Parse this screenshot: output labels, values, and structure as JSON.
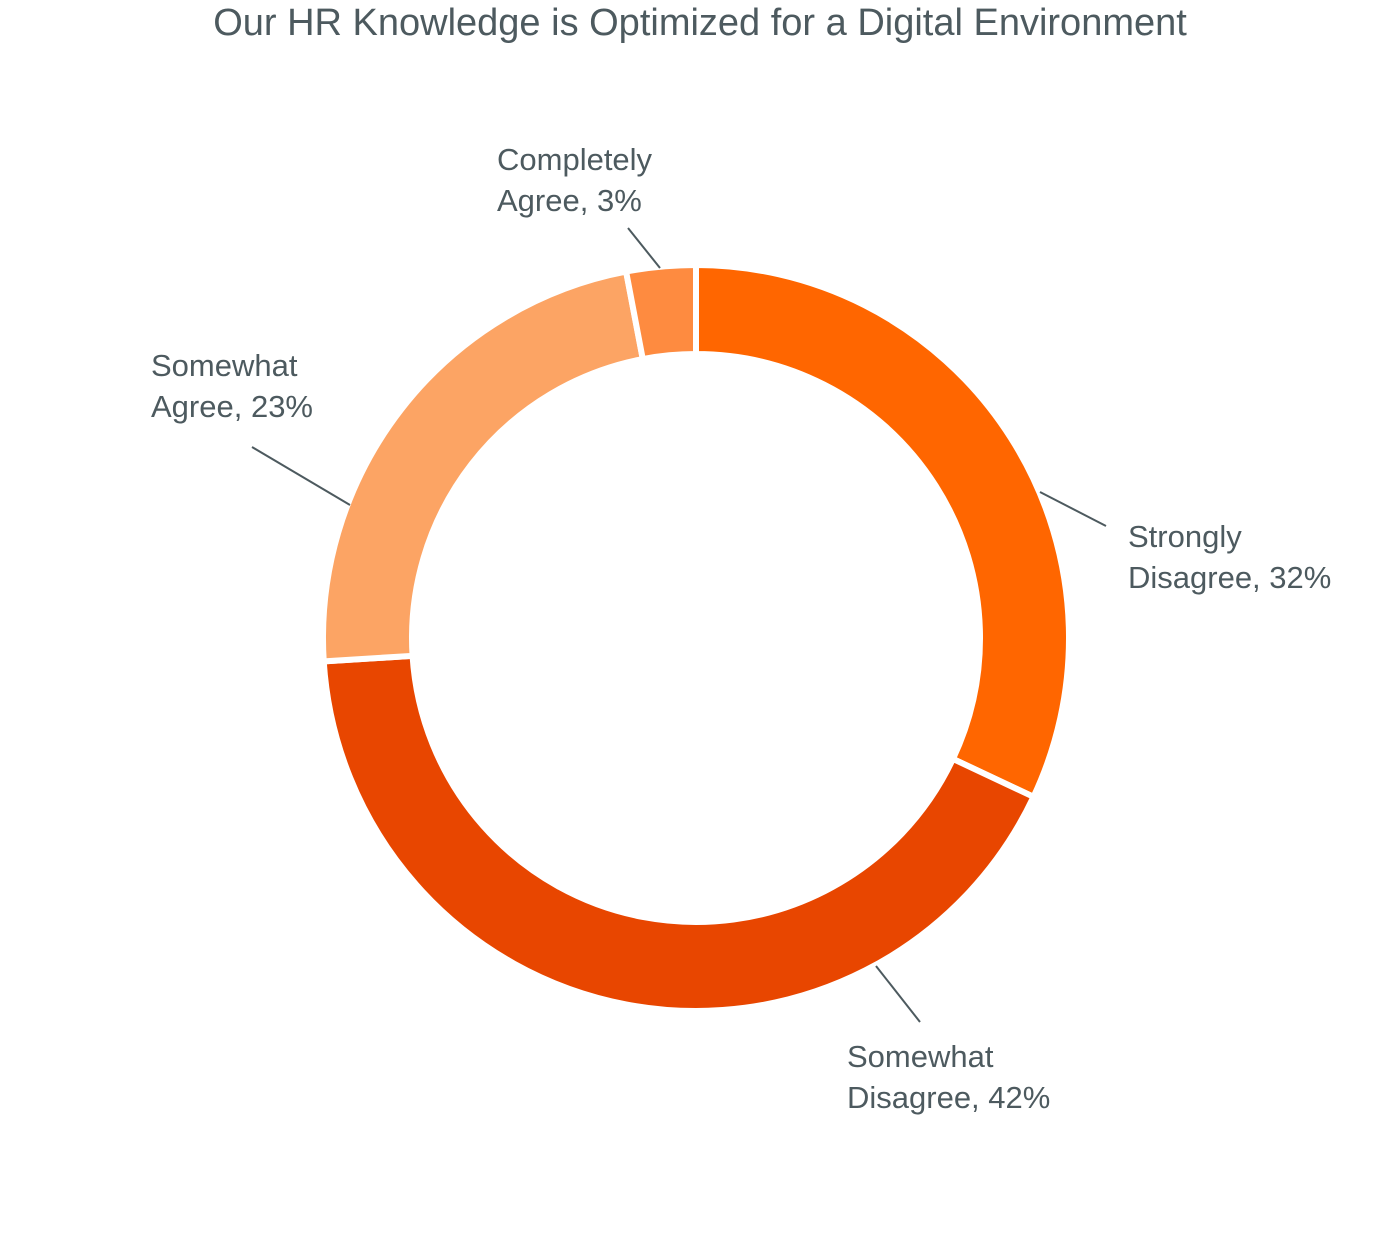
{
  "chart_data": {
    "type": "pie",
    "title": "Our HR Knowledge is Optimized for a Digital Environment",
    "series": [
      {
        "name": "Strongly Disagree",
        "value": 32,
        "label_line1": "Strongly",
        "label_line2": "Disagree, 32%",
        "color": "#ff6600"
      },
      {
        "name": "Somewhat Disagree",
        "value": 42,
        "label_line1": "Somewhat",
        "label_line2": "Disagree, 42%",
        "color": "#e84600"
      },
      {
        "name": "Somewhat Agree",
        "value": 23,
        "label_line1": "Somewhat",
        "label_line2": "Agree, 23%",
        "color": "#fca464"
      },
      {
        "name": "Completely Agree",
        "value": 3,
        "label_line1": "Completely",
        "label_line2": "Agree, 3%",
        "color": "#fe8b40"
      }
    ],
    "donut": true,
    "start": "top, clockwise",
    "legend": "none"
  }
}
